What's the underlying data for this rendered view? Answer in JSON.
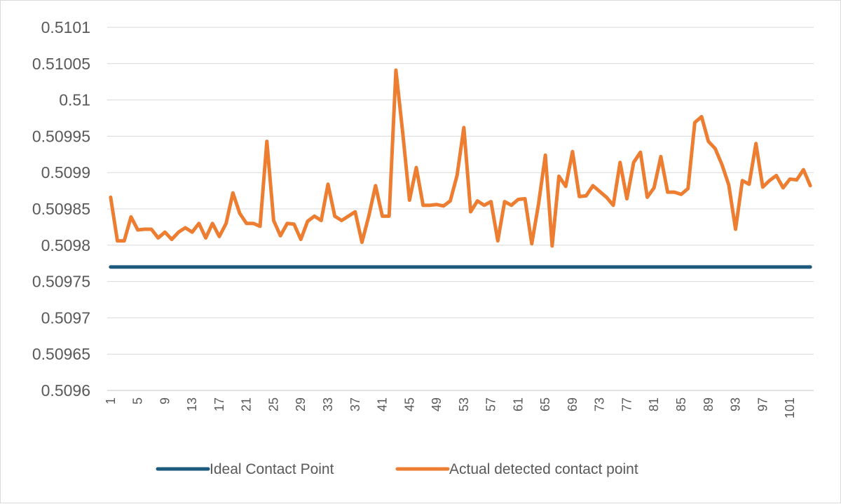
{
  "chart_data": {
    "type": "line",
    "title": "",
    "xlabel": "",
    "ylabel": "",
    "x_start": 1,
    "x_end": 104,
    "x_tick_labels": [
      "1",
      "5",
      "9",
      "13",
      "17",
      "21",
      "25",
      "29",
      "33",
      "37",
      "41",
      "45",
      "49",
      "53",
      "57",
      "61",
      "65",
      "69",
      "73",
      "77",
      "81",
      "85",
      "89",
      "93",
      "97",
      "101"
    ],
    "x_tick_step": 4,
    "ylim": [
      0.5096,
      0.5101
    ],
    "y_tick_labels": [
      "0.5096",
      "0.50965",
      "0.5097",
      "0.50975",
      "0.5098",
      "0.50985",
      "0.5099",
      "0.50995",
      "0.51",
      "0.51005",
      "0.5101"
    ],
    "grid": true,
    "legend_position": "bottom",
    "series": [
      {
        "name": "Ideal Contact Point",
        "color": "#1b5a7d",
        "values": [
          0.50977,
          0.50977,
          0.50977,
          0.50977,
          0.50977,
          0.50977,
          0.50977,
          0.50977,
          0.50977,
          0.50977,
          0.50977,
          0.50977,
          0.50977,
          0.50977,
          0.50977,
          0.50977,
          0.50977,
          0.50977,
          0.50977,
          0.50977,
          0.50977,
          0.50977,
          0.50977,
          0.50977,
          0.50977,
          0.50977,
          0.50977,
          0.50977,
          0.50977,
          0.50977,
          0.50977,
          0.50977,
          0.50977,
          0.50977,
          0.50977,
          0.50977,
          0.50977,
          0.50977,
          0.50977,
          0.50977,
          0.50977,
          0.50977,
          0.50977,
          0.50977,
          0.50977,
          0.50977,
          0.50977,
          0.50977,
          0.50977,
          0.50977,
          0.50977,
          0.50977,
          0.50977,
          0.50977,
          0.50977,
          0.50977,
          0.50977,
          0.50977,
          0.50977,
          0.50977,
          0.50977,
          0.50977,
          0.50977,
          0.50977,
          0.50977,
          0.50977,
          0.50977,
          0.50977,
          0.50977,
          0.50977,
          0.50977,
          0.50977,
          0.50977,
          0.50977,
          0.50977,
          0.50977,
          0.50977,
          0.50977,
          0.50977,
          0.50977,
          0.50977,
          0.50977,
          0.50977,
          0.50977,
          0.50977,
          0.50977,
          0.50977,
          0.50977,
          0.50977,
          0.50977,
          0.50977,
          0.50977,
          0.50977,
          0.50977,
          0.50977,
          0.50977,
          0.50977,
          0.50977,
          0.50977,
          0.50977,
          0.50977,
          0.50977,
          0.50977,
          0.50977
        ]
      },
      {
        "name": "Actual detected contact point",
        "color": "#ed7d31",
        "values": [
          0.509866,
          0.509806,
          0.509806,
          0.509839,
          0.509821,
          0.509822,
          0.509822,
          0.50981,
          0.509818,
          0.509808,
          0.509818,
          0.509824,
          0.509818,
          0.50983,
          0.50981,
          0.50983,
          0.509812,
          0.50983,
          0.509872,
          0.509844,
          0.50983,
          0.50983,
          0.509826,
          0.509943,
          0.509834,
          0.509813,
          0.50983,
          0.509829,
          0.509808,
          0.509833,
          0.50984,
          0.509834,
          0.509884,
          0.50984,
          0.509834,
          0.50984,
          0.509846,
          0.509804,
          0.50984,
          0.509882,
          0.50984,
          0.50984,
          0.510041,
          0.509955,
          0.509862,
          0.509907,
          0.509855,
          0.509855,
          0.509856,
          0.509854,
          0.509861,
          0.509896,
          0.509962,
          0.509846,
          0.509861,
          0.509855,
          0.50986,
          0.509806,
          0.50986,
          0.509855,
          0.509863,
          0.509864,
          0.509802,
          0.509857,
          0.509924,
          0.509799,
          0.509895,
          0.509881,
          0.509929,
          0.509867,
          0.509868,
          0.509882,
          0.509874,
          0.509866,
          0.509855,
          0.509914,
          0.509864,
          0.509914,
          0.509928,
          0.509866,
          0.509879,
          0.509922,
          0.509873,
          0.509873,
          0.50987,
          0.509878,
          0.509969,
          0.509977,
          0.509943,
          0.509933,
          0.509911,
          0.509883,
          0.509822,
          0.509889,
          0.509884,
          0.50994,
          0.50988,
          0.509889,
          0.509896,
          0.509879,
          0.509891,
          0.50989,
          0.509904,
          0.509882
        ]
      }
    ]
  }
}
